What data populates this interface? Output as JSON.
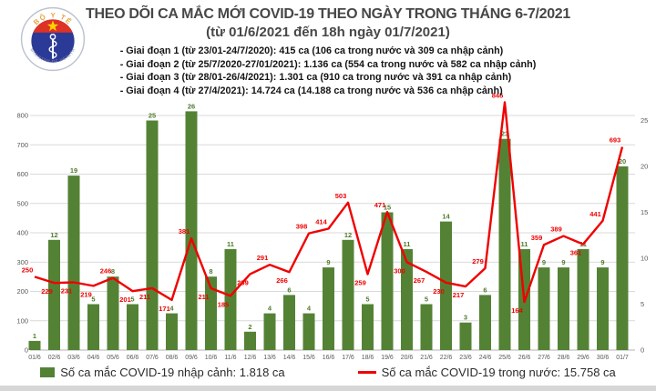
{
  "logo": {
    "top_text": "BỘ Y TẾ",
    "bottom_text": "MINISTRY OF HEALTH"
  },
  "header": {
    "title_line1": "THEO DÕI CA MẮC MỚI COVID-19 THEO NGÀY TRONG THÁNG 6-7/2021",
    "title_line2": "(từ 01/6/2021 đến 18h ngày 01/7/2021)",
    "phases": [
      "- Giai đoạn 1 (từ 23/01-24/7/2020): 415 ca (106 ca trong nước và 309 ca nhập cảnh)",
      "- Giai đoạn 2 (từ 25/7/2020-27/01/2021): 1.136 ca (554 ca trong nước và 582 ca nhập cảnh)",
      "- Giai đoạn 3 (từ 28/01-26/4/2021): 1.301 ca (910 ca trong nước và 391 ca nhập cảnh)",
      "- Giai đoạn 4 (từ 27/4/2021): 14.724 ca (14.188 ca trong nước và 536 ca nhập cảnh)"
    ]
  },
  "chart_data": {
    "type": "bar",
    "subtype": "combo bar+line, dual axis",
    "categories": [
      "01/6",
      "02/6",
      "03/6",
      "04/6",
      "05/6",
      "06/6",
      "07/6",
      "08/6",
      "09/6",
      "10/6",
      "11/6",
      "12/6",
      "13/6",
      "14/6",
      "15/6",
      "16/6",
      "17/6",
      "18/6",
      "19/6",
      "20/6",
      "21/6",
      "22/6",
      "23/6",
      "24/6",
      "25/6",
      "26/6",
      "27/6",
      "28/6",
      "29/6",
      "30/6",
      "01/7"
    ],
    "series": [
      {
        "name": "Số ca mắc COVID-19 nhập cảnh",
        "type": "bar",
        "axis": "right",
        "color": "#548235",
        "values": [
          1,
          12,
          19,
          5,
          8,
          5,
          25,
          4,
          26,
          8,
          11,
          2,
          4,
          6,
          4,
          9,
          12,
          5,
          15,
          11,
          5,
          14,
          3,
          6,
          23,
          11,
          9,
          9,
          11,
          9,
          20
        ]
      },
      {
        "name": "Số ca mắc COVID-19 trong nước",
        "type": "line",
        "axis": "left",
        "color": "#f00000",
        "values": [
          250,
          229,
          231,
          219,
          246,
          201,
          211,
          171,
          381,
          211,
          185,
          259,
          291,
          266,
          398,
          414,
          503,
          259,
          471,
          300,
          267,
          230,
          217,
          279,
          845,
          164,
          359,
          389,
          361,
          441,
          693
        ]
      }
    ],
    "left_axis": {
      "min": 0,
      "max": 800,
      "step": 100
    },
    "right_axis": {
      "min": 0,
      "max": 25,
      "step": 5
    },
    "grid": true,
    "legend_position": "bottom",
    "legend": [
      "Số ca mắc COVID-19 nhập cảnh: 1.818 ca",
      "Số ca mắc COVID-19 trong nước: 15.758 ca"
    ]
  },
  "colors": {
    "bar_green": "#548235",
    "bar_label_green": "#4e7b2d",
    "line_red": "#f00000",
    "axis_text": "#595959",
    "gridline": "#d9d9d9",
    "title_gray": "#474747"
  }
}
